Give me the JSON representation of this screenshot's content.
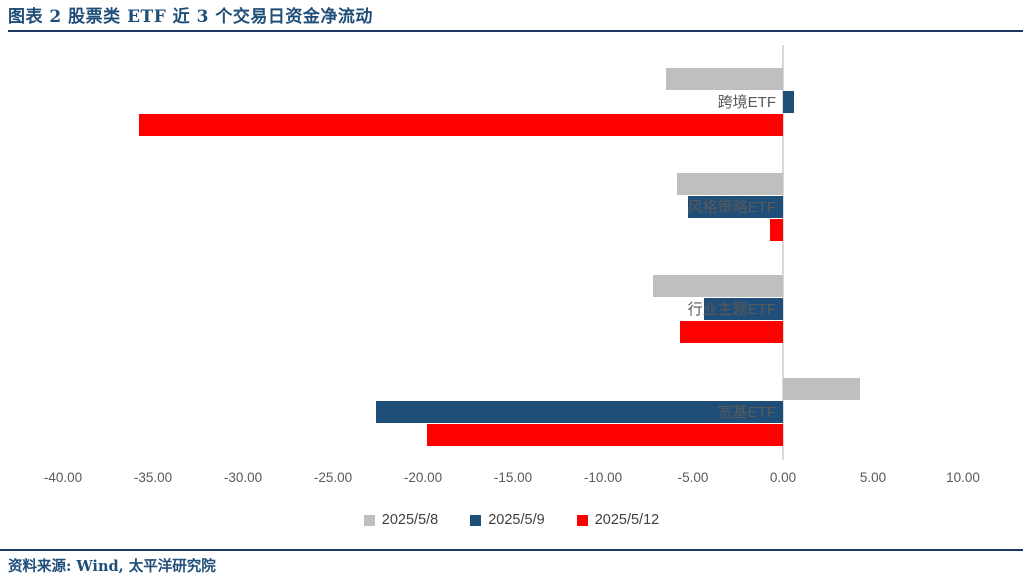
{
  "title": "图表 2 股票类 ETF 近 3 个交易日资金净流动",
  "source": "资料来源: Wind, 太平洋研究院",
  "colors": {
    "accent_navy": "#1F4E79",
    "rule_navy": "#1F3864",
    "axis_text": "#595959",
    "legend_text": "#404040",
    "zero_line": "#D9D9D9"
  },
  "chart_data": {
    "type": "bar",
    "orientation": "horizontal",
    "title": "图表 2 股票类 ETF 近 3 个交易日资金净流动",
    "categories": [
      "跨境ETF",
      "风格策略ETF",
      "行业主题ETF",
      "宽基ETF"
    ],
    "series": [
      {
        "name": "2025/5/8",
        "color": "#BFBFBF",
        "values": [
          -6.5,
          -5.9,
          -7.2,
          4.3
        ]
      },
      {
        "name": "2025/5/9",
        "color": "#1F4E79",
        "values": [
          0.6,
          -5.3,
          -4.4,
          -22.6
        ]
      },
      {
        "name": "2025/5/12",
        "color": "#FF0000",
        "values": [
          -35.8,
          -0.7,
          -5.7,
          -19.8
        ]
      }
    ],
    "xlim": [
      -40,
      10
    ],
    "x_tick_step": 5,
    "x_ticks": [
      "-40.00",
      "-35.00",
      "-30.00",
      "-25.00",
      "-20.00",
      "-15.00",
      "-10.00",
      "-5.00",
      "0.00",
      "5.00",
      "10.00"
    ],
    "grid": false,
    "zero_axis_line": true,
    "legend_position": "bottom"
  }
}
